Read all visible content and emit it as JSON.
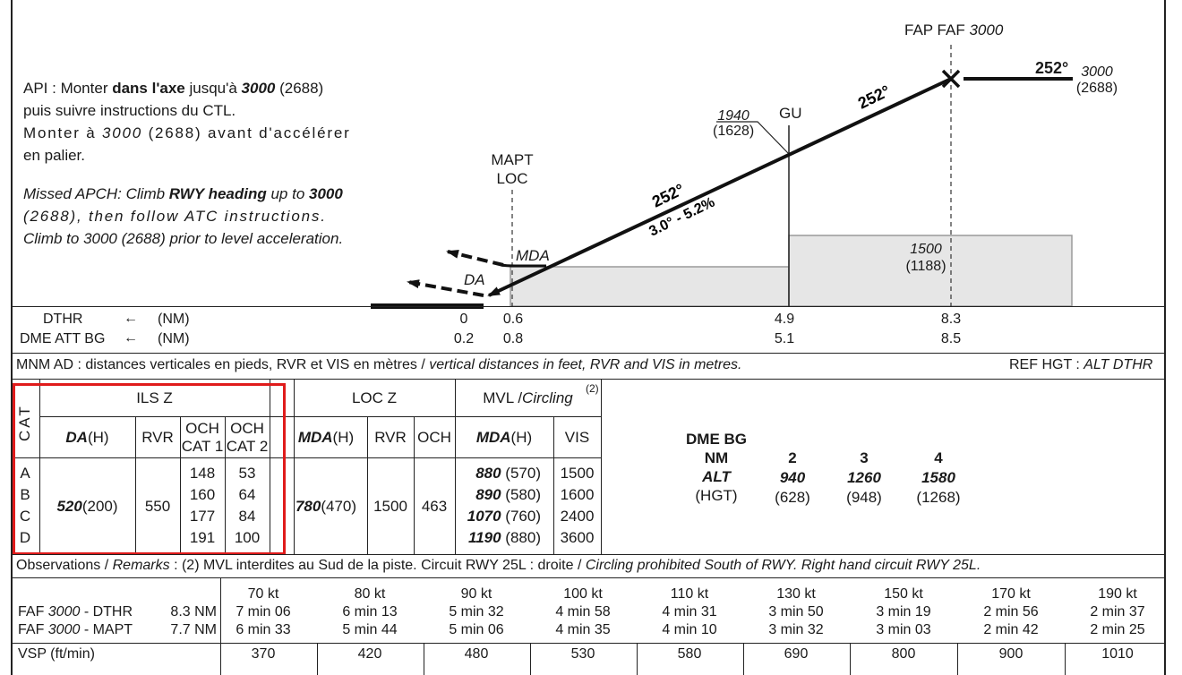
{
  "profile": {
    "missed_fr": {
      "l1_a": "API : Monter ",
      "l1_b": "dans l'axe",
      "l1_c": " jusqu'à ",
      "l1_d": "3000",
      "l1_e": " (2688)",
      "l2": "puis suivre instructions du CTL.",
      "l3_a": "Monter à ",
      "l3_b": "3000",
      "l3_c": " (2688) avant d'accélérer",
      "l4": "en palier."
    },
    "missed_en": {
      "l1_a": "Missed APCH: Climb ",
      "l1_b": "RWY heading",
      "l1_c": " up to ",
      "l1_d": "3000",
      "l2": "(2688), then follow ATC instructions.",
      "l3": "Climb to 3000 (2688) prior to level acceleration."
    },
    "fap_label": "FAP FAF",
    "fap_alt": "3000",
    "seg_track_out": "252°",
    "seg_alt_out": "3000",
    "seg_hgt_out": "(2688)",
    "track_upper": "252°",
    "gu_label": "GU",
    "gu_alt": "1940",
    "gu_hgt": "(1628)",
    "track_lower": "252°",
    "slope": "3.0° - 5.2%",
    "mapt_l1": "MAPT",
    "mapt_l2": "LOC",
    "mda_label": "MDA",
    "da_label": "DA",
    "obst_alt": "1500",
    "obst_hgt": "(1188)"
  },
  "distances": {
    "dthr_label": "DTHR",
    "dme_label": "DME ATT BG",
    "arrow": "←",
    "unit": "(NM)",
    "dthr_values": [
      "0",
      "0.6",
      "4.9",
      "8.3"
    ],
    "dme_values": [
      "0.2",
      "0.8",
      "5.1",
      "8.5"
    ]
  },
  "minima": {
    "header_a": "MNM AD : distances verticales en pieds, RVR et VIS en mètres / ",
    "header_b": "vertical distances in feet, RVR and VIS in metres.",
    "ref_a": "REF HGT : ",
    "ref_b": "ALT DTHR",
    "cat_label": "CAT",
    "cats": [
      "A",
      "B",
      "C",
      "D"
    ],
    "ils": {
      "title": "ILS Z",
      "da_head": "DA",
      "da_head_h": " (H)",
      "rvr_head": "RVR",
      "och1_l1": "OCH",
      "och1_l2": "CAT 1",
      "och2_l1": "OCH",
      "och2_l2": "CAT 2",
      "da_val": "520",
      "da_hgt": " (200)",
      "rvr_val": "550",
      "och1": [
        "148",
        "160",
        "177",
        "191"
      ],
      "och2": [
        "53",
        "64",
        "84",
        "100"
      ]
    },
    "loc": {
      "title": "LOC Z",
      "mda_head": "MDA",
      "mda_head_h": " (H)",
      "rvr_head": "RVR",
      "och_head": "OCH",
      "mda_val": "780",
      "mda_hgt": " (470)",
      "rvr_val": "1500",
      "och_val": "463"
    },
    "mvl": {
      "title_a": "MVL / ",
      "title_b": "Circling",
      "note": "(2)",
      "mda_head": "MDA",
      "mda_head_h": " (H)",
      "vis_head": "VIS",
      "rows": [
        {
          "mda": "880",
          "hgt": " (570)",
          "vis": "1500"
        },
        {
          "mda": "890",
          "hgt": " (580)",
          "vis": "1600"
        },
        {
          "mda": "1070",
          "hgt": " (760)",
          "vis": "2400"
        },
        {
          "mda": "1190",
          "hgt": " (880)",
          "vis": "3600"
        }
      ]
    },
    "dme": {
      "head_l1": "DME BG",
      "head_l2": "NM",
      "alt_label": "ALT",
      "hgt_label": "(HGT)",
      "cols": [
        {
          "nm": "2",
          "alt": "940",
          "hgt": "(628)"
        },
        {
          "nm": "3",
          "alt": "1260",
          "hgt": "(948)"
        },
        {
          "nm": "4",
          "alt": "1580",
          "hgt": "(1268)"
        }
      ]
    }
  },
  "remarks": {
    "a": "Observations / ",
    "b": "Remarks",
    "c": " : (2) MVL interdites au Sud de la piste. Circuit RWY 25L : droite / ",
    "d": "Circling prohibited South of RWY. Right hand circuit RWY 25L."
  },
  "timing": {
    "row1_a": "FAF ",
    "row1_b": "3000",
    "row1_c": " - DTHR",
    "row1_dist": "8.3 NM",
    "row2_a": "FAF ",
    "row2_b": "3000",
    "row2_c": " - MAPT",
    "row2_dist": "7.7 NM",
    "speeds": [
      {
        "kt": "70 kt",
        "dthr": "7 min 06",
        "mapt": "6 min 33",
        "vsp": "370"
      },
      {
        "kt": "80 kt",
        "dthr": "6 min 13",
        "mapt": "5 min 44",
        "vsp": "420"
      },
      {
        "kt": "90 kt",
        "dthr": "5 min 32",
        "mapt": "5 min 06",
        "vsp": "480"
      },
      {
        "kt": "100 kt",
        "dthr": "4 min 58",
        "mapt": "4 min 35",
        "vsp": "530"
      },
      {
        "kt": "110 kt",
        "dthr": "4 min 31",
        "mapt": "4 min 10",
        "vsp": "580"
      },
      {
        "kt": "130 kt",
        "dthr": "3 min 50",
        "mapt": "3 min 32",
        "vsp": "690"
      },
      {
        "kt": "150 kt",
        "dthr": "3 min 19",
        "mapt": "3 min 03",
        "vsp": "800"
      },
      {
        "kt": "170 kt",
        "dthr": "2 min 56",
        "mapt": "2 min 42",
        "vsp": "900"
      },
      {
        "kt": "190 kt",
        "dthr": "2 min 37",
        "mapt": "2 min 25",
        "vsp": "1010"
      }
    ],
    "vsp_label": "VSP (ft/min)"
  }
}
